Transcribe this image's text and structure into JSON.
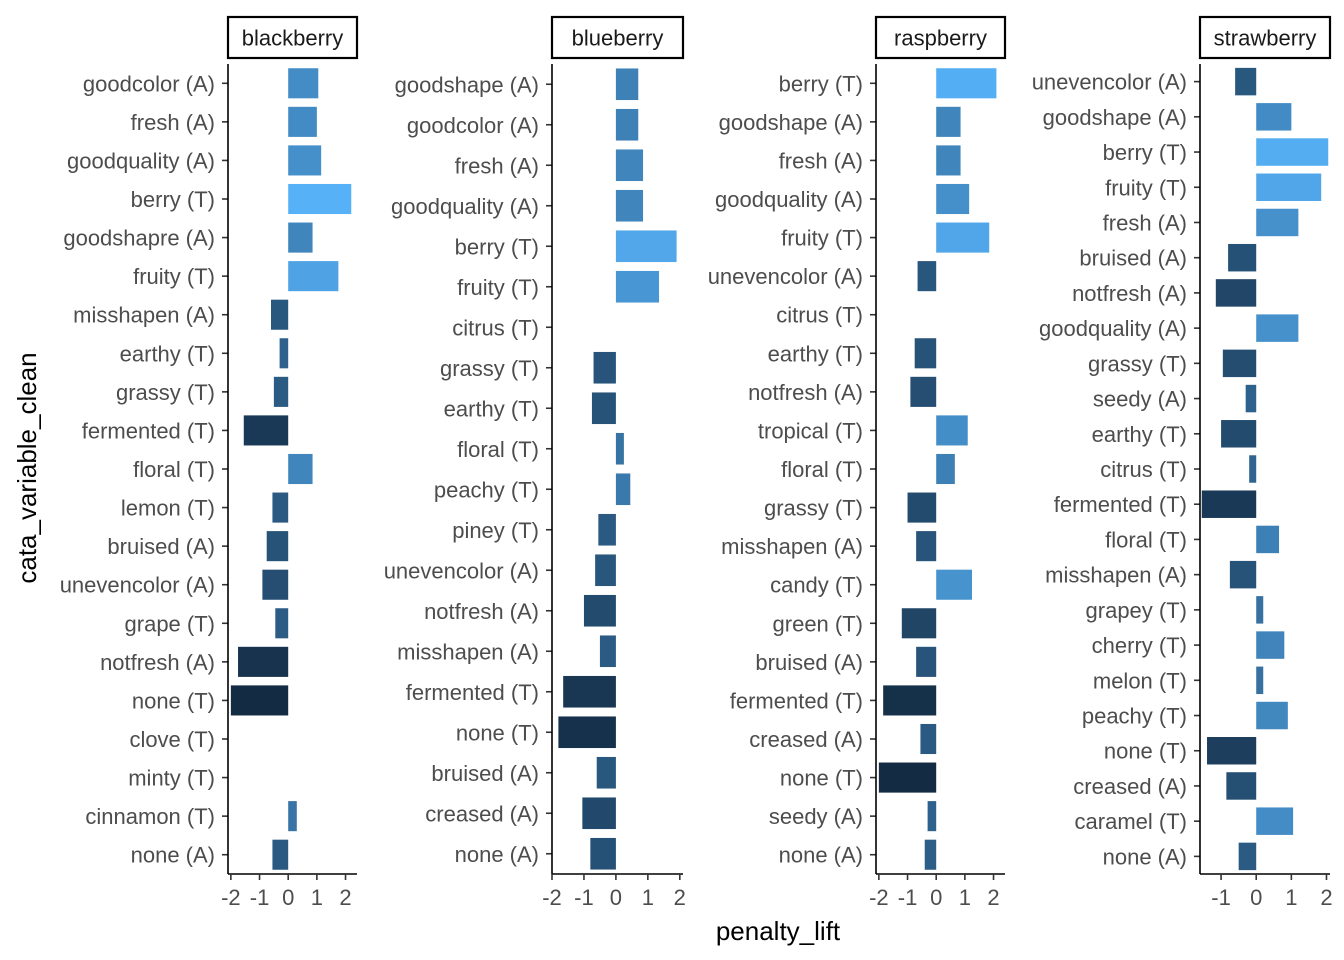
{
  "chart_data": {
    "type": "bar",
    "orientation": "horizontal",
    "xlabel": "penalty_lift",
    "ylabel": "cata_variable_clean",
    "grid": false,
    "legend": "none",
    "color_scale": {
      "low": "#132b43",
      "high": "#56b1f7"
    },
    "panels": [
      {
        "name": "blackberry",
        "xlim": [
          -2.1,
          2.4
        ],
        "xticks": [
          -2,
          -1,
          0,
          1,
          2
        ],
        "xtick_labels": [
          "-2",
          "-1",
          "0",
          "1",
          "2"
        ],
        "categories": [
          "goodcolor (A)",
          "fresh (A)",
          "goodquality (A)",
          "berry (T)",
          "goodshapre (A)",
          "fruity (T)",
          "misshapen (A)",
          "earthy (T)",
          "grassy (T)",
          "fermented (T)",
          "floral (T)",
          "lemon (T)",
          "bruised (A)",
          "unevencolor (A)",
          "grape (T)",
          "notfresh (A)",
          "none (T)",
          "clove (T)",
          "minty (T)",
          "cinnamon (T)",
          "none (A)"
        ],
        "values": [
          1.05,
          1.0,
          1.15,
          2.2,
          0.85,
          1.75,
          -0.6,
          -0.3,
          -0.5,
          -1.55,
          0.85,
          -0.55,
          -0.75,
          -0.9,
          -0.45,
          -1.75,
          -2.0,
          0,
          0,
          0.3,
          -0.55
        ]
      },
      {
        "name": "blueberry",
        "xlim": [
          -2.0,
          2.1
        ],
        "xticks": [
          -2,
          -1,
          0,
          1,
          2
        ],
        "xtick_labels": [
          "-2",
          "-1",
          "0",
          "1",
          "2"
        ],
        "categories": [
          "goodshape (A)",
          "goodcolor (A)",
          "fresh (A)",
          "goodquality (A)",
          "berry (T)",
          "fruity (T)",
          "citrus (T)",
          "grassy (T)",
          "earthy (T)",
          "floral (T)",
          "peachy (T)",
          "piney (T)",
          "unevencolor (A)",
          "notfresh (A)",
          "misshapen (A)",
          "fermented (T)",
          "none (T)",
          "bruised (A)",
          "creased (A)",
          "none (A)"
        ],
        "values": [
          0.7,
          0.7,
          0.85,
          0.85,
          1.9,
          1.35,
          0,
          -0.7,
          -0.75,
          0.25,
          0.45,
          -0.55,
          -0.65,
          -1.0,
          -0.5,
          -1.65,
          -1.8,
          -0.6,
          -1.05,
          -0.8
        ]
      },
      {
        "name": "raspberry",
        "xlim": [
          -2.1,
          2.4
        ],
        "xticks": [
          -2,
          -1,
          0,
          1,
          2
        ],
        "xtick_labels": [
          "-2",
          "-1",
          "0",
          "1",
          "2"
        ],
        "categories": [
          "berry (T)",
          "goodshape (A)",
          "fresh (A)",
          "goodquality (A)",
          "fruity (T)",
          "unevencolor (A)",
          "citrus (T)",
          "earthy (T)",
          "notfresh (A)",
          "tropical (T)",
          "floral (T)",
          "grassy (T)",
          "misshapen (A)",
          "candy (T)",
          "green (T)",
          "bruised (A)",
          "fermented (T)",
          "creased (A)",
          "none (T)",
          "seedy (A)",
          "none (A)"
        ],
        "values": [
          2.1,
          0.85,
          0.85,
          1.15,
          1.85,
          -0.65,
          0,
          -0.75,
          -0.9,
          1.1,
          0.65,
          -1.0,
          -0.7,
          1.25,
          -1.2,
          -0.7,
          -1.85,
          -0.55,
          -2.0,
          -0.3,
          -0.4
        ]
      },
      {
        "name": "strawberry",
        "xlim": [
          -1.6,
          2.1
        ],
        "xticks": [
          -1,
          0,
          1,
          2
        ],
        "xtick_labels": [
          "-1",
          "0",
          "1",
          "2"
        ],
        "categories": [
          "unevencolor (A)",
          "goodshape (A)",
          "berry (T)",
          "fruity (T)",
          "fresh (A)",
          "bruised (A)",
          "notfresh (A)",
          "goodquality (A)",
          "grassy (T)",
          "seedy (A)",
          "earthy (T)",
          "citrus (T)",
          "fermented (T)",
          "floral (T)",
          "misshapen (A)",
          "grapey (T)",
          "cherry (T)",
          "melon (T)",
          "peachy (T)",
          "none (T)",
          "creased (A)",
          "caramel (T)",
          "none (A)"
        ],
        "values": [
          -0.6,
          1.0,
          2.05,
          1.85,
          1.2,
          -0.8,
          -1.15,
          1.2,
          -0.95,
          -0.3,
          -1.0,
          -0.2,
          -1.55,
          0.65,
          -0.75,
          0.2,
          0.8,
          0.2,
          0.9,
          -1.4,
          -0.85,
          1.05,
          -0.5
        ]
      }
    ]
  }
}
